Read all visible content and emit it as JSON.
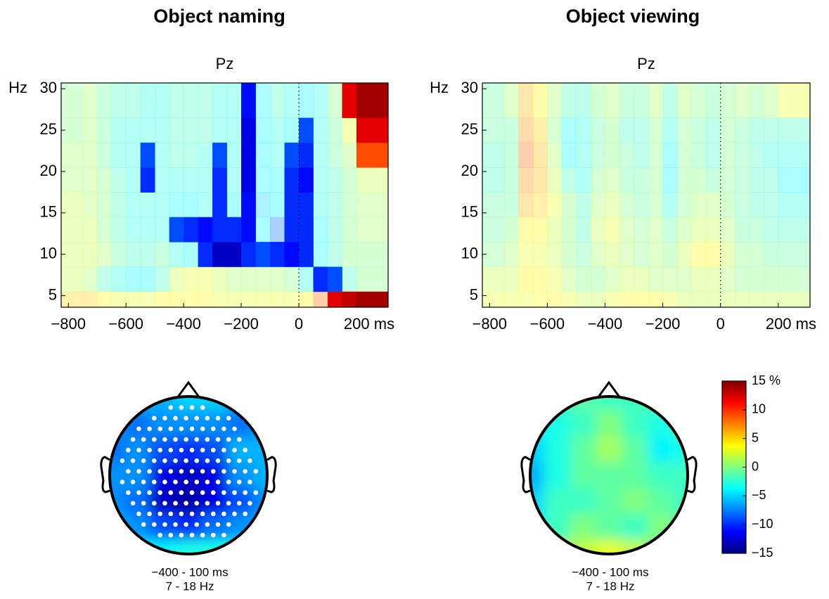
{
  "chart_data": [
    {
      "type": "heatmap",
      "title": "Object naming",
      "subtitle": "Pz",
      "ylabel": "Hz",
      "clim": [
        -15,
        15
      ],
      "xlim": [
        -825,
        310
      ],
      "ylim": [
        3.6,
        30.7
      ],
      "xticks": [
        {
          "value": -800,
          "label": "−800"
        },
        {
          "value": -600,
          "label": "−600"
        },
        {
          "value": -400,
          "label": "−400"
        },
        {
          "value": -200,
          "label": "−200"
        },
        0,
        {
          "value": 200,
          "label": "200 ms"
        }
      ],
      "yticks": [
        5,
        10,
        15,
        20,
        25,
        30
      ],
      "x": [
        -775,
        -725,
        -675,
        -625,
        -575,
        -525,
        -475,
        -425,
        -375,
        -325,
        -275,
        -225,
        -175,
        -125,
        -75,
        -25,
        25,
        75,
        125,
        175,
        225
      ],
      "y": [
        4,
        7,
        10,
        13,
        16,
        19,
        22,
        25,
        28
      ],
      "z": [
        [
          5,
          5,
          4,
          3,
          3,
          3,
          4,
          4,
          4,
          4,
          3,
          3,
          3,
          3,
          3,
          3,
          4,
          8,
          12,
          13,
          14
        ],
        [
          2,
          1,
          -2,
          -3,
          -4,
          -4,
          -2,
          2,
          3,
          3,
          2,
          1,
          1,
          1,
          1,
          0,
          -3,
          -10,
          -9,
          -2,
          0
        ],
        [
          2,
          2,
          1,
          -1,
          -2,
          -2,
          -1,
          -3,
          -4,
          -10,
          -13,
          -13,
          -10,
          -9,
          -10,
          -11,
          -10,
          -4,
          -2,
          0,
          0
        ],
        [
          2,
          2,
          0,
          -2,
          -3,
          -3,
          -3,
          -9,
          -10,
          -11,
          -10,
          -10,
          -11,
          -4,
          -8,
          -10,
          -10,
          -4,
          -2,
          0,
          1
        ],
        [
          2,
          1,
          0,
          -2,
          -3,
          -3,
          -3,
          -4,
          -4,
          -3,
          -10,
          -4,
          -11,
          -5,
          -4,
          -10,
          -10,
          -3,
          -2,
          0,
          1
        ],
        [
          1,
          1,
          0,
          -2,
          -3,
          -10,
          -3,
          -3,
          -3,
          -3,
          -10,
          -3,
          -12,
          -4,
          -4,
          -10,
          -11,
          -3,
          -2,
          0,
          2
        ],
        [
          1,
          1,
          -1,
          -3,
          -3,
          -9,
          -3,
          -2,
          -2,
          -3,
          -9,
          -3,
          -12,
          -4,
          -3,
          -9,
          -10,
          -3,
          -1,
          1,
          9
        ],
        [
          0,
          1,
          -1,
          -3,
          -3,
          -3,
          -3,
          -2,
          -2,
          -2,
          -3,
          -3,
          -12,
          -4,
          -3,
          -4,
          -9,
          -3,
          -1,
          3,
          12
        ],
        [
          0,
          1,
          -1,
          -2,
          -2,
          -3,
          -3,
          -2,
          -2,
          -2,
          -3,
          -3,
          -11,
          -4,
          -2,
          -3,
          -4,
          -3,
          0,
          12,
          14
        ]
      ]
    },
    {
      "type": "heatmap",
      "title": "Object viewing",
      "subtitle": "Pz",
      "ylabel": "Hz",
      "clim": [
        -15,
        15
      ],
      "xlim": [
        -825,
        310
      ],
      "ylim": [
        3.6,
        30.7
      ],
      "xticks": [
        {
          "value": -800,
          "label": "−800"
        },
        {
          "value": -600,
          "label": "−600"
        },
        {
          "value": -400,
          "label": "−400"
        },
        {
          "value": -200,
          "label": "−200"
        },
        0,
        {
          "value": 200,
          "label": "200 ms"
        }
      ],
      "yticks": [
        5,
        10,
        15,
        20,
        25,
        30
      ],
      "x": [
        -775,
        -725,
        -675,
        -625,
        -575,
        -525,
        -475,
        -425,
        -375,
        -325,
        -275,
        -225,
        -175,
        -125,
        -75,
        -25,
        25,
        75,
        125,
        175,
        225
      ],
      "y": [
        4,
        7,
        10,
        13,
        16,
        19,
        22,
        25,
        28
      ],
      "z": [
        [
          3,
          3,
          3,
          4,
          4,
          3,
          2,
          2,
          3,
          4,
          4,
          4,
          3,
          2,
          2,
          2,
          2,
          2,
          2,
          2,
          2
        ],
        [
          2,
          2,
          4,
          4,
          3,
          1,
          0,
          0,
          1,
          2,
          2,
          1,
          1,
          1,
          2,
          2,
          1,
          0,
          0,
          0,
          0
        ],
        [
          0,
          1,
          3,
          3,
          2,
          0,
          -1,
          1,
          2,
          1,
          0,
          1,
          0,
          2,
          4,
          4,
          2,
          0,
          0,
          -1,
          -1
        ],
        [
          -1,
          0,
          4,
          4,
          2,
          0,
          -2,
          2,
          3,
          1,
          0,
          1,
          -1,
          1,
          2,
          2,
          1,
          -1,
          -1,
          -2,
          -2
        ],
        [
          -1,
          -1,
          6,
          5,
          3,
          0,
          -2,
          1,
          2,
          0,
          -1,
          0,
          -3,
          0,
          1,
          1,
          0,
          -1,
          -2,
          -2,
          -3
        ],
        [
          -2,
          -1,
          7,
          6,
          2,
          -2,
          -3,
          0,
          1,
          -1,
          -1,
          0,
          -4,
          0,
          0,
          -1,
          0,
          -1,
          -2,
          -2,
          -4
        ],
        [
          -2,
          -1,
          8,
          6,
          1,
          -4,
          -3,
          -1,
          0,
          -1,
          -2,
          0,
          -4,
          0,
          -1,
          -2,
          0,
          -1,
          -2,
          -3,
          -3
        ],
        [
          -1,
          -1,
          7,
          5,
          0,
          -4,
          -3,
          -1,
          0,
          -2,
          -2,
          0,
          -3,
          0,
          -1,
          -2,
          0,
          -1,
          -2,
          -2,
          -2
        ],
        [
          -1,
          1,
          6,
          4,
          1,
          -2,
          -2,
          0,
          1,
          -1,
          -1,
          1,
          -2,
          1,
          0,
          -1,
          0,
          1,
          0,
          1,
          3
        ]
      ]
    },
    {
      "type": "topomap",
      "caption": [
        "−400 - 100 ms",
        "7 - 18 Hz"
      ],
      "clim": [
        -15,
        15
      ],
      "electrodes": true,
      "grid": [
        [
          -6,
          -6,
          -6,
          -5,
          -5,
          -6,
          -6
        ],
        [
          -7,
          -8,
          -7,
          -7,
          -7,
          -8,
          -7
        ],
        [
          -8,
          -7,
          -9,
          -10,
          -9,
          -6,
          -6
        ],
        [
          -7,
          -7,
          -12,
          -13,
          -12,
          -7,
          -6
        ],
        [
          -7,
          -8,
          -13,
          -14,
          -12,
          -9,
          -7
        ],
        [
          -6,
          -7,
          -9,
          -10,
          -8,
          -7,
          -6
        ],
        [
          -3,
          -4,
          -4,
          -3,
          -3,
          -3,
          -3
        ]
      ]
    },
    {
      "type": "topomap",
      "caption": [
        "−400 - 100 ms",
        "7 - 18 Hz"
      ],
      "clim": [
        -15,
        15
      ],
      "electrodes": false,
      "grid": [
        [
          -2,
          -2,
          -1,
          -2,
          -2,
          -1,
          -1
        ],
        [
          -4,
          -3,
          -2,
          0,
          -2,
          -3,
          -2
        ],
        [
          -5,
          -3,
          -1,
          1,
          -1,
          -4,
          -3
        ],
        [
          -6,
          -3,
          -1,
          -1,
          -1,
          -2,
          -2
        ],
        [
          -5,
          -2,
          -2,
          -1,
          0,
          -1,
          -2
        ],
        [
          -4,
          -2,
          0,
          -1,
          -2,
          0,
          -1
        ],
        [
          -1,
          1,
          2,
          3,
          2,
          0,
          0
        ]
      ],
      "colorbar": {
        "clim": [
          -15,
          15
        ],
        "ticks": [
          {
            "value": 15,
            "label": "15 %"
          },
          10,
          5,
          0,
          {
            "value": -5,
            "label": "−5"
          },
          {
            "value": -10,
            "label": "−10"
          },
          {
            "value": -15,
            "label": "−15"
          }
        ]
      }
    }
  ]
}
